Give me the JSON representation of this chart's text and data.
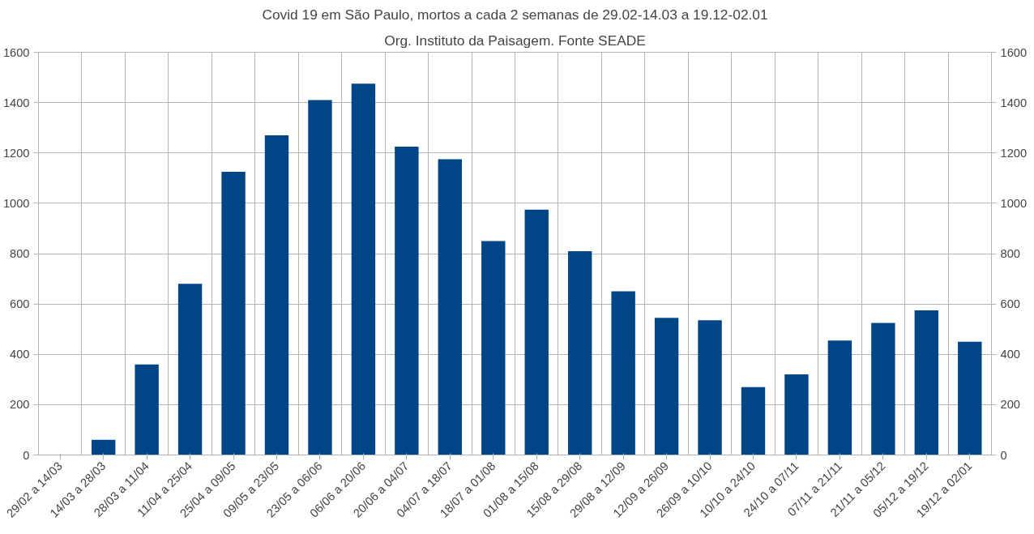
{
  "chart_data": {
    "type": "bar",
    "title": "Covid 19 em São Paulo, mortos a cada 2 semanas de 29.02-14.03 a 19.12-02.01",
    "subtitle": "Org. Instituto da Paisagem. Fonte SEADE",
    "categories": [
      "29/02 a 14/03",
      "14/03 a 28/03",
      "28/03 a 11/04",
      "11/04 a 25/04",
      "25/04 a 09/05",
      "09/05 a 23/05",
      "23/05 a 06/06",
      "06/06 a 20/06",
      "20/06 a 04/07",
      "04/07 a 18/07",
      "18/07 a 01/08",
      "01/08 a 15/08",
      "15/08 a 29/08",
      "29/08 a 12/09",
      "12/09 a 26/09",
      "26/09 a 10/10",
      "10/10 a 24/10",
      "24/10 a 07/11",
      "07/11 a 21/11",
      "21/11 a 05/12",
      "05/12 a 19/12",
      "19/12 a 02/01"
    ],
    "values": [
      0,
      60,
      360,
      680,
      1125,
      1270,
      1410,
      1475,
      1225,
      1175,
      850,
      975,
      810,
      650,
      545,
      535,
      270,
      320,
      455,
      525,
      575,
      450
    ],
    "color": "#004586",
    "ylim": [
      0,
      1600
    ],
    "yticks": [
      0,
      200,
      400,
      600,
      800,
      1000,
      1200,
      1400,
      1600
    ],
    "y2lim": [
      0,
      1600
    ],
    "y2ticks": [
      0,
      200,
      400,
      600,
      800,
      1000,
      1200,
      1400,
      1600
    ],
    "grid": true
  }
}
